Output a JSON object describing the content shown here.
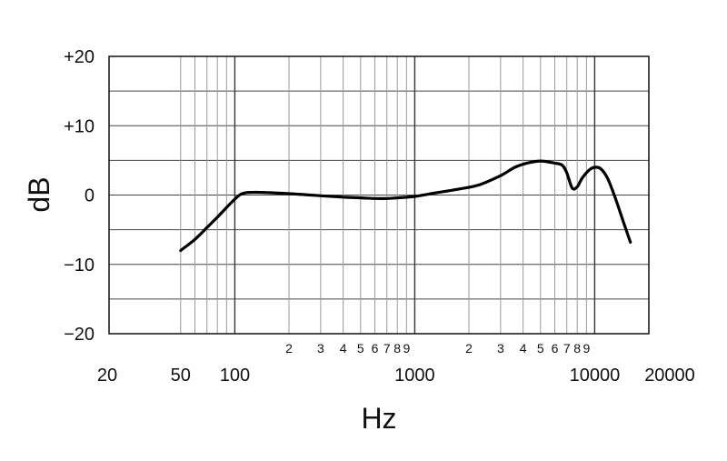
{
  "chart_data": {
    "type": "line",
    "title": "",
    "xlabel": "Hz",
    "ylabel": "dB",
    "x_scale": "log",
    "xlim": [
      20,
      20000
    ],
    "ylim": [
      -20,
      20
    ],
    "grid": true,
    "y_tick_labels": [
      {
        "value": 20,
        "label": "+20"
      },
      {
        "value": 10,
        "label": "+10"
      },
      {
        "value": 0,
        "label": "0"
      },
      {
        "value": -10,
        "label": "−10"
      },
      {
        "value": -20,
        "label": "−20"
      }
    ],
    "x_major_tick_labels": [
      {
        "value": 20,
        "label": "20"
      },
      {
        "value": 50,
        "label": "50"
      },
      {
        "value": 100,
        "label": "100"
      },
      {
        "value": 1000,
        "label": "1000"
      },
      {
        "value": 10000,
        "label": "10000"
      },
      {
        "value": 20000,
        "label": "20000"
      }
    ],
    "x_minor_tick_labels": [
      {
        "value": 200,
        "label": "2"
      },
      {
        "value": 300,
        "label": "3"
      },
      {
        "value": 400,
        "label": "4"
      },
      {
        "value": 500,
        "label": "5"
      },
      {
        "value": 600,
        "label": "6"
      },
      {
        "value": 700,
        "label": "7"
      },
      {
        "value": 800,
        "label": "8"
      },
      {
        "value": 900,
        "label": "9"
      },
      {
        "value": 2000,
        "label": "2"
      },
      {
        "value": 3000,
        "label": "3"
      },
      {
        "value": 4000,
        "label": "4"
      },
      {
        "value": 5000,
        "label": "5"
      },
      {
        "value": 6000,
        "label": "6"
      },
      {
        "value": 7000,
        "label": "7"
      },
      {
        "value": 8000,
        "label": "8"
      },
      {
        "value": 9000,
        "label": "9"
      }
    ],
    "series": [
      {
        "color": "#000000",
        "points": [
          [
            50,
            -8
          ],
          [
            60,
            -6.4
          ],
          [
            70,
            -4.7
          ],
          [
            80,
            -3.2
          ],
          [
            90,
            -1.8
          ],
          [
            100,
            -0.6
          ],
          [
            110,
            0.2
          ],
          [
            130,
            0.4
          ],
          [
            200,
            0.2
          ],
          [
            300,
            -0.1
          ],
          [
            400,
            -0.3
          ],
          [
            500,
            -0.4
          ],
          [
            600,
            -0.5
          ],
          [
            700,
            -0.5
          ],
          [
            800,
            -0.4
          ],
          [
            1000,
            -0.2
          ],
          [
            1300,
            0.3
          ],
          [
            1800,
            0.9
          ],
          [
            2300,
            1.5
          ],
          [
            3000,
            2.8
          ],
          [
            3600,
            4.0
          ],
          [
            4200,
            4.6
          ],
          [
            5000,
            4.9
          ],
          [
            6000,
            4.6
          ],
          [
            6600,
            4.3
          ],
          [
            7000,
            3.2
          ],
          [
            7500,
            1.0
          ],
          [
            8000,
            1.2
          ],
          [
            8500,
            2.4
          ],
          [
            9300,
            3.6
          ],
          [
            10000,
            4.0
          ],
          [
            10800,
            3.8
          ],
          [
            11800,
            2.4
          ],
          [
            13000,
            -0.4
          ],
          [
            14500,
            -4.0
          ],
          [
            15800,
            -6.8
          ]
        ]
      }
    ]
  }
}
